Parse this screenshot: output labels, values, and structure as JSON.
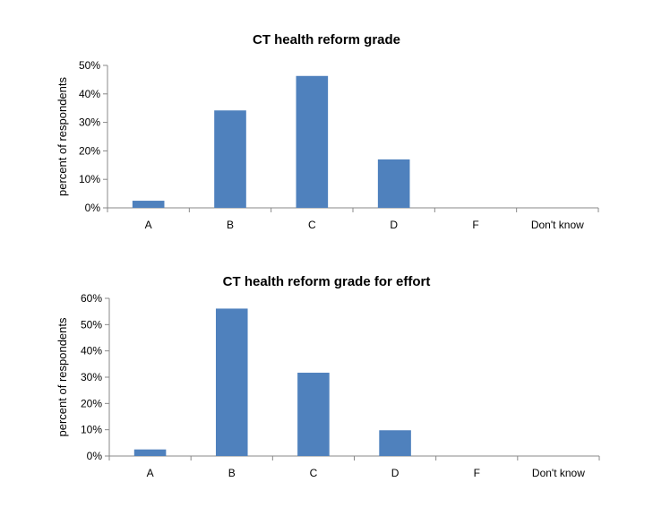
{
  "chart_data": [
    {
      "type": "bar",
      "title": "CT health reform grade",
      "xlabel": "",
      "ylabel": "percent of respondents",
      "categories": [
        "A",
        "B",
        "C",
        "D",
        "F",
        "Don't know"
      ],
      "values": [
        2.5,
        34.2,
        46.3,
        17.0,
        0,
        0
      ],
      "ylim": [
        0,
        50
      ],
      "yticks": [
        "0%",
        "10%",
        "20%",
        "30%",
        "40%",
        "50%"
      ],
      "color": "#4f81bd",
      "grid": false,
      "legend": "none"
    },
    {
      "type": "bar",
      "title": "CT health reform grade for effort",
      "xlabel": "",
      "ylabel": "percent of respondents",
      "categories": [
        "A",
        "B",
        "C",
        "D",
        "F",
        "Don't know"
      ],
      "values": [
        2.5,
        56.1,
        31.7,
        9.8,
        0,
        0
      ],
      "ylim": [
        0,
        60
      ],
      "yticks": [
        "0%",
        "10%",
        "20%",
        "30%",
        "40%",
        "50%",
        "60%"
      ],
      "color": "#4f81bd",
      "grid": false,
      "legend": "none"
    }
  ]
}
